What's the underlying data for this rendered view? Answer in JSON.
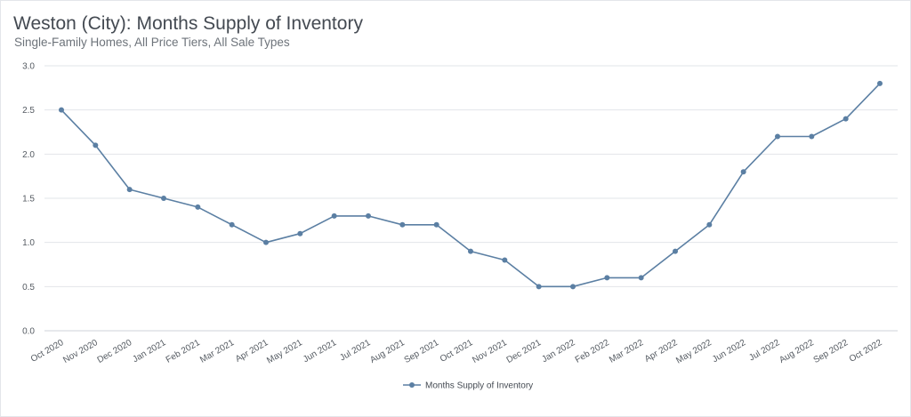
{
  "chart": {
    "title": "Weston (City): Months Supply of Inventory",
    "subtitle": "Single-Family Homes, All Price Tiers, All Sale Types"
  },
  "chart_data": {
    "type": "line",
    "title": "Weston (City): Months Supply of Inventory",
    "subtitle": "Single-Family Homes, All Price Tiers, All Sale Types",
    "xlabel": "",
    "ylabel": "",
    "ylim": [
      0,
      3.0
    ],
    "yticks": [
      "0.0",
      "0.5",
      "1.0",
      "1.5",
      "2.0",
      "2.5",
      "3.0"
    ],
    "grid": true,
    "legend_position": "bottom",
    "line_color": "#5b7fa3",
    "categories": [
      "Oct 2020",
      "Nov 2020",
      "Dec 2020",
      "Jan 2021",
      "Feb 2021",
      "Mar 2021",
      "Apr 2021",
      "May 2021",
      "Jun 2021",
      "Jul 2021",
      "Aug 2021",
      "Sep 2021",
      "Oct 2021",
      "Nov 2021",
      "Dec 2021",
      "Jan 2022",
      "Feb 2022",
      "Mar 2022",
      "Apr 2022",
      "May 2022",
      "Jun 2022",
      "Jul 2022",
      "Aug 2022",
      "Sep 2022",
      "Oct 2022"
    ],
    "series": [
      {
        "name": "Months Supply of Inventory",
        "values": [
          2.5,
          2.1,
          1.6,
          1.5,
          1.4,
          1.2,
          1.0,
          1.1,
          1.3,
          1.3,
          1.2,
          1.2,
          0.9,
          0.8,
          0.5,
          0.5,
          0.6,
          0.6,
          0.9,
          1.2,
          1.8,
          2.2,
          2.2,
          2.4,
          2.8
        ]
      }
    ]
  }
}
